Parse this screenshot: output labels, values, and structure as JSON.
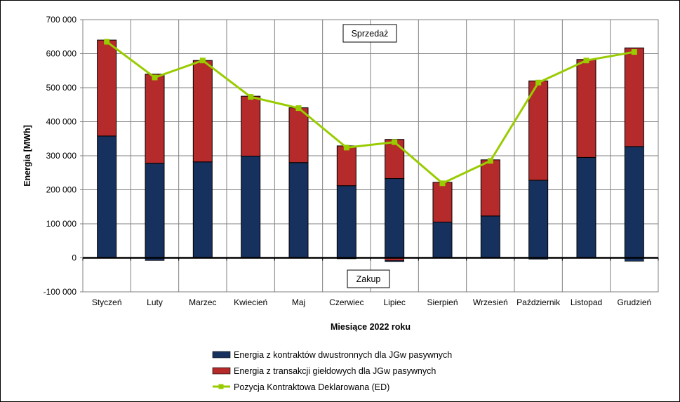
{
  "chart_data": {
    "type": "bar",
    "stacked": true,
    "categories": [
      "Styczeń",
      "Luty",
      "Marzec",
      "Kwiecień",
      "Maj",
      "Czerwiec",
      "Lipiec",
      "Sierpień",
      "Wrzesień",
      "Październik",
      "Listopad",
      "Grudzień"
    ],
    "series": [
      {
        "name": "Energia z kontraktów dwustronnych dla JGw pasywnych",
        "type": "bar",
        "color": "#17315e",
        "values": [
          358000,
          278000,
          282000,
          299000,
          280000,
          212000,
          233000,
          105000,
          123000,
          228000,
          295000,
          327000
        ]
      },
      {
        "name": "Energia z transakcji giełdowych dla JGw pasywnych",
        "type": "bar",
        "color": "#b52a2a",
        "values": [
          282000,
          262000,
          298000,
          176000,
          161000,
          117000,
          115000,
          117000,
          165000,
          292000,
          288000,
          290000
        ]
      },
      {
        "name": "Energia z transakcji giełdowych dla JGw pasywnych (ujemna)",
        "type": "bar-negative",
        "color": "#b52a2a",
        "values": [
          0,
          0,
          0,
          0,
          0,
          0,
          -8000,
          0,
          0,
          0,
          0,
          0
        ]
      },
      {
        "name": "Energia z kontraktów dwustronnych dla JGw pasywnych (ujemna)",
        "type": "bar-negative",
        "color": "#17315e",
        "values": [
          0,
          -8000,
          0,
          0,
          0,
          -3000,
          -3000,
          0,
          0,
          -4000,
          0,
          -10000
        ]
      },
      {
        "name": "Pozycja Kontraktowa Deklarowana (ED)",
        "type": "line",
        "color": "#99cc00",
        "values": [
          635000,
          530000,
          580000,
          473000,
          440000,
          324000,
          340000,
          219000,
          285000,
          515000,
          580000,
          605000
        ]
      }
    ],
    "xlabel": "Miesiące 2022  roku",
    "ylabel": "Energia [MWh]",
    "ylim": [
      -100000,
      700000
    ],
    "yticks": [
      700000,
      600000,
      500000,
      400000,
      300000,
      200000,
      100000,
      0,
      -100000
    ],
    "ytick_labels": [
      "700 000",
      "600 000",
      "500 000",
      "400 000",
      "300 000",
      "200 000",
      "100 000",
      "0",
      "-100 000"
    ],
    "grid": true,
    "legend_position": "bottom",
    "legend": [
      "Energia z kontraktów dwustronnych dla JGw pasywnych",
      "Energia z transakcji giełdowych dla JGw pasywnych",
      "Pozycja Kontraktowa Deklarowana (ED)"
    ],
    "annotations": [
      "Sprzedaż",
      "Zakup"
    ]
  }
}
